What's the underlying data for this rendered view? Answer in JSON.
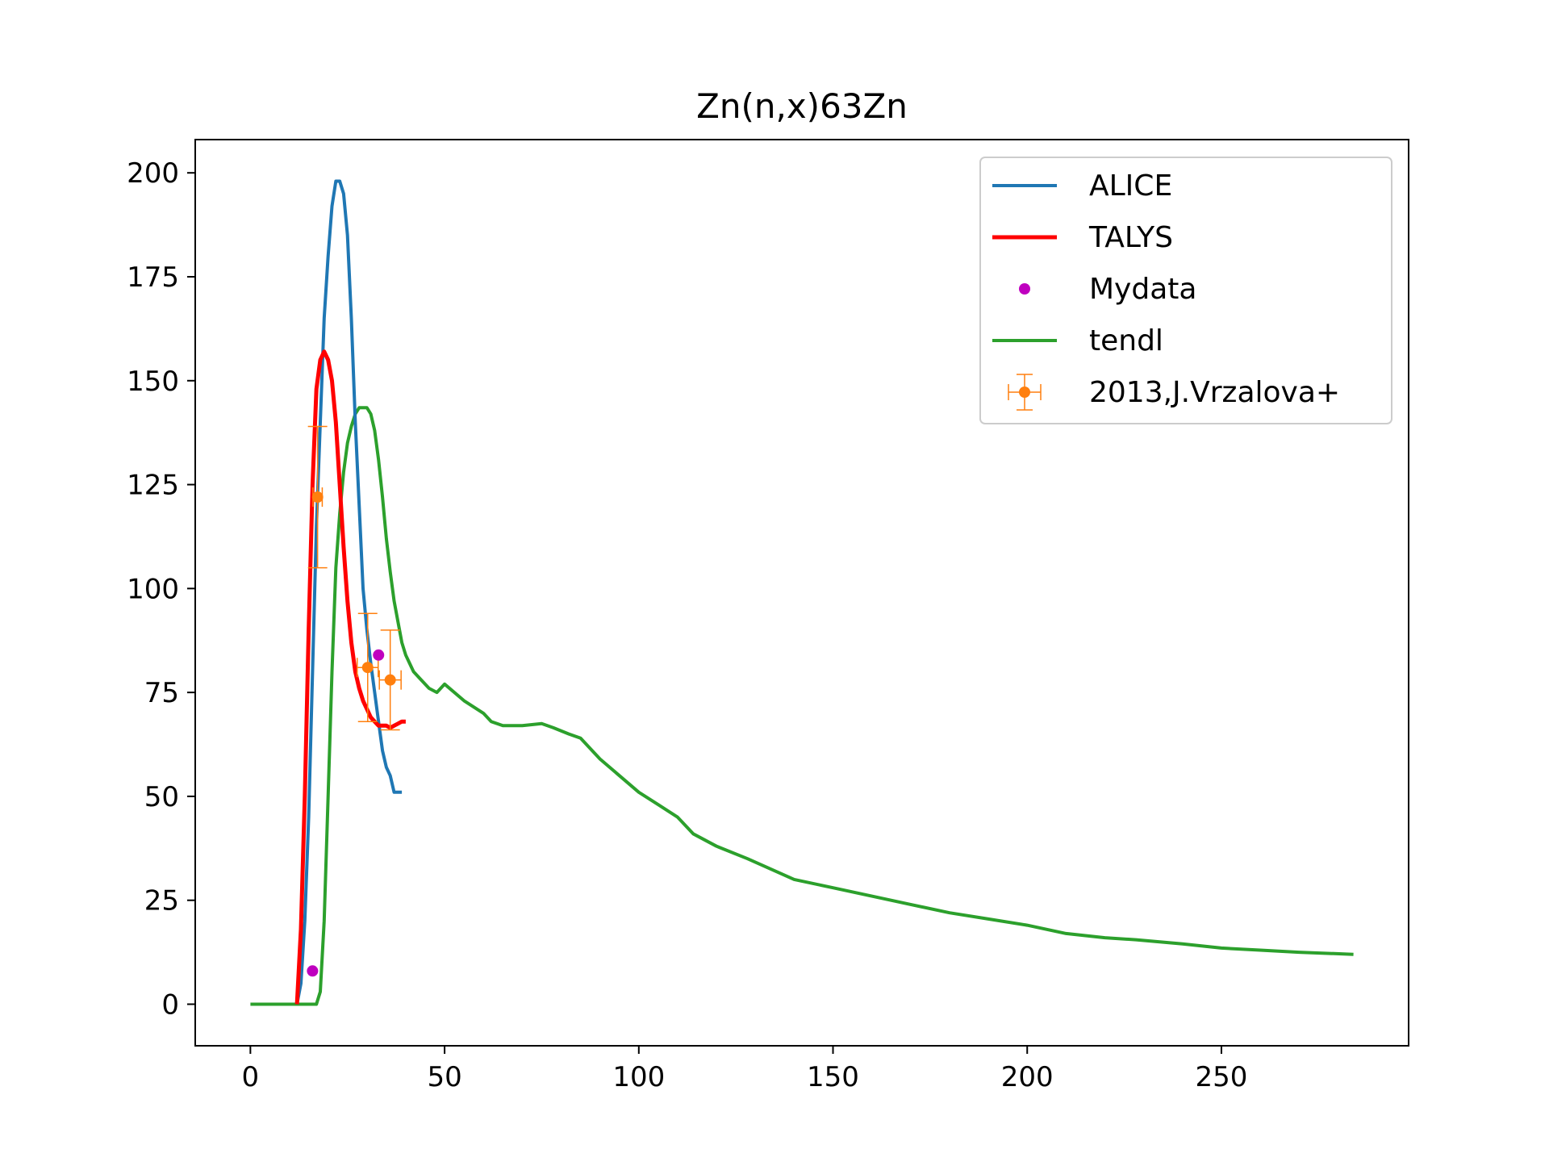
{
  "chart_data": {
    "type": "line",
    "title": "Zn(n,x)63Zn",
    "xlabel": "",
    "ylabel": "",
    "xlim": [
      -14.2,
      298.2
    ],
    "ylim": [
      -10,
      208
    ],
    "xticks": [
      0,
      50,
      100,
      150,
      200,
      250
    ],
    "yticks": [
      0,
      25,
      50,
      75,
      100,
      125,
      150,
      175,
      200
    ],
    "legend_position": "top-right",
    "colors": {
      "ALICE": "#1f77b4",
      "TALYS": "#ff0000",
      "Mydata": "#bf00bf",
      "tendl": "#2ca02c",
      "exp": "#ff7f0e"
    },
    "series": [
      {
        "name": "ALICE",
        "kind": "line",
        "color": "#1f77b4",
        "x": [
          12,
          13,
          14,
          15,
          16,
          17,
          18,
          19,
          20,
          21,
          22,
          23,
          24,
          25,
          26,
          27,
          28,
          29,
          30,
          31,
          32,
          33,
          34,
          35,
          36,
          37,
          38,
          39
        ],
        "y": [
          0,
          5,
          20,
          45,
          80,
          115,
          140,
          165,
          180,
          192,
          198,
          198,
          195,
          185,
          165,
          140,
          120,
          100,
          90,
          82,
          75,
          68,
          61,
          57,
          55,
          51,
          51,
          51
        ]
      },
      {
        "name": "TALYS",
        "kind": "line",
        "color": "#ff0000",
        "x": [
          12,
          13,
          14,
          15,
          16,
          17,
          18,
          19,
          20,
          21,
          22,
          23,
          24,
          25,
          26,
          27,
          28,
          29,
          30,
          31,
          32,
          33,
          34,
          35,
          36,
          37,
          38,
          39,
          40
        ],
        "y": [
          0,
          18,
          50,
          90,
          125,
          148,
          155,
          157,
          155,
          150,
          140,
          125,
          110,
          97,
          87,
          80,
          76,
          73,
          71,
          69,
          68,
          67,
          67,
          67,
          66.5,
          67,
          67.5,
          68,
          68
        ]
      },
      {
        "name": "Mydata",
        "kind": "points",
        "color": "#bf00bf",
        "x": [
          16,
          33
        ],
        "y": [
          8,
          84
        ]
      },
      {
        "name": "tendl",
        "kind": "line",
        "color": "#2ca02c",
        "x": [
          0,
          2,
          4,
          6,
          8,
          10,
          12,
          14,
          16,
          17,
          18,
          19,
          20,
          21,
          22,
          23,
          24,
          25,
          26,
          27,
          28,
          29,
          30,
          31,
          32,
          33,
          34,
          35,
          36,
          37,
          38,
          39,
          40,
          42,
          44,
          46,
          48,
          50,
          55,
          60,
          62,
          65,
          70,
          75,
          78,
          82,
          85,
          90,
          95,
          100,
          105,
          110,
          114,
          120,
          128,
          140,
          150,
          160,
          170,
          180,
          190,
          200,
          210,
          220,
          228,
          240,
          250,
          260,
          270,
          284
        ],
        "y": [
          0,
          0,
          0,
          0,
          0,
          0,
          0,
          0,
          0,
          0,
          3,
          20,
          50,
          80,
          105,
          118,
          128,
          135,
          139,
          142,
          143.5,
          143.5,
          143.5,
          142,
          138,
          131,
          122,
          112,
          104,
          97,
          92,
          87,
          84,
          80,
          78,
          76,
          75,
          77,
          73,
          70,
          68,
          67,
          67,
          67.5,
          66.5,
          65,
          64,
          59,
          55,
          51,
          48,
          45,
          41,
          38,
          35,
          30,
          28,
          26,
          24,
          22,
          20.5,
          19,
          17,
          16,
          15.5,
          14.5,
          13.5,
          13,
          12.5,
          12
        ]
      },
      {
        "name": "2013,J.Vrzalova+",
        "kind": "errorbar",
        "color": "#ff7f0e",
        "points": [
          {
            "x": 17.3,
            "y": 122,
            "yerr": 17,
            "xerr": 1.2
          },
          {
            "x": 30.2,
            "y": 81,
            "yerr": 13,
            "xerr": 2.7
          },
          {
            "x": 36,
            "y": 78,
            "yerr": 12,
            "xerr": 2.8
          }
        ]
      }
    ]
  }
}
